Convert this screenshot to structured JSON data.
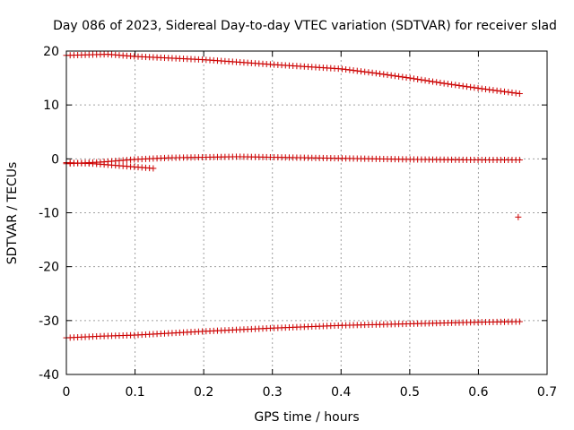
{
  "chart_data": {
    "type": "scatter",
    "title": "Day 086 of 2023, Sidereal Day-to-day VTEC variation (SDTVAR) for receiver slad",
    "xlabel": "GPS time / hours",
    "ylabel": "SDTVAR / TECUs",
    "xlim": [
      0,
      0.7
    ],
    "ylim": [
      -40,
      20
    ],
    "xticks": [
      0,
      0.1,
      0.2,
      0.3,
      0.4,
      0.5,
      0.6,
      0.7
    ],
    "xtick_labels": [
      "0",
      "0.1",
      "0.2",
      "0.3",
      "0.4",
      "0.5",
      "0.6",
      "0.7"
    ],
    "yticks": [
      -40,
      -30,
      -20,
      -10,
      0,
      10,
      20
    ],
    "ytick_labels": [
      "-40",
      "-30",
      "-20",
      "-10",
      "0",
      "10",
      "20"
    ],
    "grid": true,
    "marker": "+",
    "marker_color": "#cc0000",
    "series": [
      {
        "name": "upper-track",
        "x": [
          0,
          0.06,
          0.1,
          0.2,
          0.3,
          0.4,
          0.45,
          0.5,
          0.55,
          0.6,
          0.66
        ],
        "y": [
          19.2,
          19.4,
          19.0,
          18.4,
          17.5,
          16.7,
          15.9,
          15.0,
          14.0,
          13.1,
          12.1
        ]
      },
      {
        "name": "zero-track",
        "x": [
          0,
          0.05,
          0.1,
          0.15,
          0.2,
          0.25,
          0.3,
          0.4,
          0.5,
          0.6,
          0.66
        ],
        "y": [
          -0.9,
          -0.6,
          -0.1,
          0.2,
          0.3,
          0.4,
          0.3,
          0.1,
          -0.1,
          -0.2,
          -0.2
        ]
      },
      {
        "name": "short-track",
        "x": [
          0,
          0.04,
          0.08,
          0.13
        ],
        "y": [
          -0.7,
          -0.9,
          -1.3,
          -1.8
        ]
      },
      {
        "name": "outlier",
        "x": [
          0.658
        ],
        "y": [
          -10.8
        ]
      },
      {
        "name": "lower-track",
        "x": [
          0,
          0.05,
          0.1,
          0.2,
          0.3,
          0.4,
          0.5,
          0.6,
          0.66
        ],
        "y": [
          -33.2,
          -32.9,
          -32.7,
          -32.0,
          -31.4,
          -30.9,
          -30.6,
          -30.3,
          -30.2
        ]
      }
    ]
  }
}
